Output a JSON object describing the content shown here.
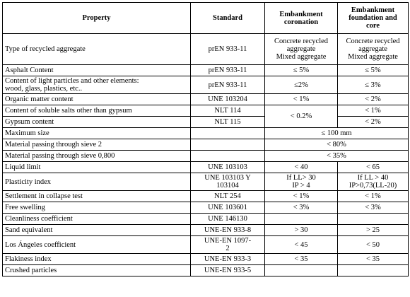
{
  "header": {
    "property": "Property",
    "standard": "Standard",
    "coronation": [
      "Embankment",
      "coronation"
    ],
    "foundation": [
      "Embankment",
      "foundation and",
      "core"
    ]
  },
  "rows": [
    {
      "property": [
        "Type of recycled aggregate"
      ],
      "standard": [
        "prEN 933-11"
      ],
      "coronation": [
        "Concrete recycled",
        "aggregate",
        "Mixed aggregate"
      ],
      "foundation": [
        "Concrete recycled",
        "aggregate",
        "Mixed aggregate"
      ]
    },
    {
      "property": [
        "Asphalt Content"
      ],
      "standard": [
        "prEN 933-11"
      ],
      "coronation": [
        "≤ 5%"
      ],
      "foundation": [
        "≤ 5%"
      ]
    },
    {
      "property": [
        "Content of light particles and other elements:",
        "wood, glass, plastics, etc.."
      ],
      "standard": [
        "prEN 933-11"
      ],
      "coronation": [
        "≤2%"
      ],
      "foundation": [
        "≤ 3%"
      ]
    },
    {
      "property": [
        "Organic matter content"
      ],
      "standard": [
        "UNE 103204"
      ],
      "coronation": [
        "< 1%"
      ],
      "foundation": [
        "< 2%"
      ]
    },
    {
      "property": [
        "Content of soluble salts other than gypsum"
      ],
      "standard": [
        "NLT 114"
      ],
      "coronation": [
        "< 0.2%"
      ],
      "foundation": [
        "< 1%"
      ]
    },
    {
      "property": [
        "Gypsum content"
      ],
      "standard": [
        "NLT 115"
      ],
      "coronation": null,
      "foundation": [
        "< 2%"
      ]
    },
    {
      "property": [
        "Maximum size"
      ],
      "standard": [
        ""
      ],
      "merged": [
        "≤ 100 mm"
      ]
    },
    {
      "property": [
        "Material passing through sieve 2"
      ],
      "standard": [
        ""
      ],
      "merged": [
        "< 80%"
      ]
    },
    {
      "property": [
        "Material passing through sieve 0,800"
      ],
      "standard": [
        ""
      ],
      "merged": [
        "< 35%"
      ]
    },
    {
      "property": [
        "Liquid limit"
      ],
      "standard": [
        "UNE 103103"
      ],
      "coronation": [
        "< 40"
      ],
      "foundation": [
        "< 65"
      ]
    },
    {
      "property": [
        "Plasticity index"
      ],
      "standard": [
        "UNE 103103 Y",
        "103104"
      ],
      "coronation": [
        "If LL> 30",
        "IP > 4"
      ],
      "foundation": [
        "If LL > 40",
        "IP>0,73(LL-20)"
      ]
    },
    {
      "property": [
        "Settlement in collapse test"
      ],
      "standard": [
        "NLT 254"
      ],
      "coronation": [
        "< 1%"
      ],
      "foundation": [
        "< 1%"
      ]
    },
    {
      "property": [
        "Free swelling"
      ],
      "standard": [
        "UNE 103601"
      ],
      "coronation": [
        "< 3%"
      ],
      "foundation": [
        "< 3%"
      ]
    },
    {
      "property": [
        "Cleanliness coefficient"
      ],
      "standard": [
        "UNE 146130"
      ],
      "coronation": [
        ""
      ],
      "foundation": [
        ""
      ]
    },
    {
      "property": [
        "Sand equivalent"
      ],
      "standard": [
        "UNE-EN 933-8"
      ],
      "coronation": [
        "> 30"
      ],
      "foundation": [
        "> 25"
      ]
    },
    {
      "property": [
        "Los Ángeles coefficient"
      ],
      "standard": [
        "UNE-EN 1097-",
        "2"
      ],
      "coronation": [
        "< 45"
      ],
      "foundation": [
        "< 50"
      ]
    },
    {
      "property": [
        "Flakiness index"
      ],
      "standard": [
        "UNE-EN 933-3"
      ],
      "coronation": [
        "< 35"
      ],
      "foundation": [
        "< 35"
      ]
    },
    {
      "property": [
        "Crushed particles"
      ],
      "standard": [
        "UNE-EN 933-5"
      ],
      "coronation": [
        ""
      ],
      "foundation": [
        ""
      ]
    }
  ]
}
